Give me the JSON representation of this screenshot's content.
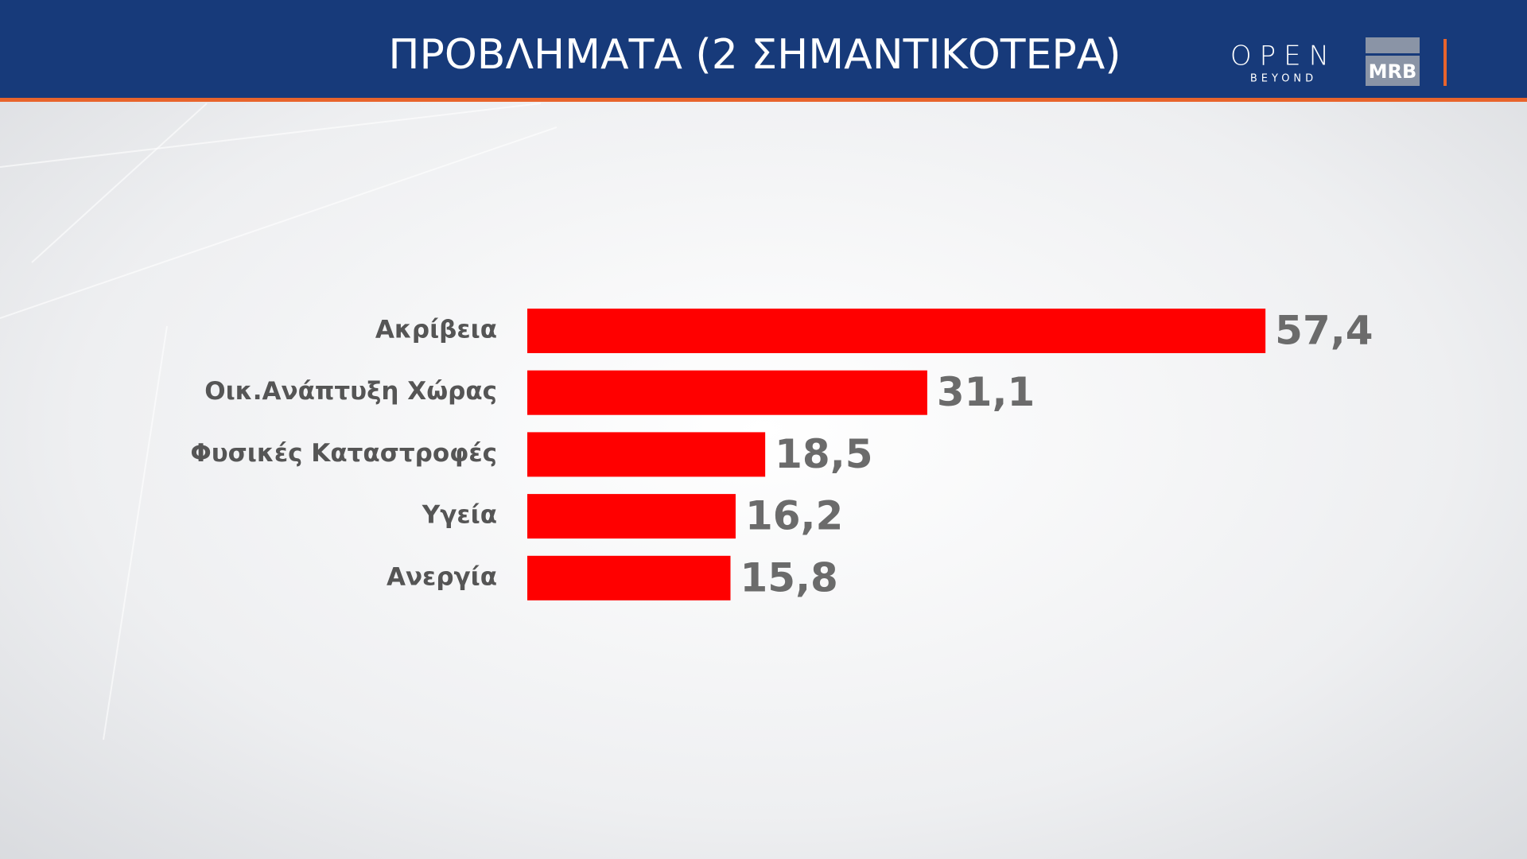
{
  "chart_data": {
    "type": "bar",
    "orientation": "horizontal",
    "title": "ΠΡΟΒΛΗΜΑΤΑ (2 ΣΗΜΑΝΤΙΚΟΤΕΡΑ)",
    "categories": [
      "Ακρίβεια",
      "Οικ.Ανάπτυξη Χώρας",
      "Φυσικές Καταστροφές",
      "Υγεία",
      "Ανεργία"
    ],
    "values": [
      57.4,
      31.1,
      18.5,
      16.2,
      15.8
    ],
    "value_labels": [
      "57,4",
      "31,1",
      "18,5",
      "16,2",
      "15,8"
    ],
    "color": "#ff0000"
  },
  "header": {
    "logo_text": "OPEN",
    "logo_subtext": "BEYOND",
    "partner_logo": "MRB"
  }
}
